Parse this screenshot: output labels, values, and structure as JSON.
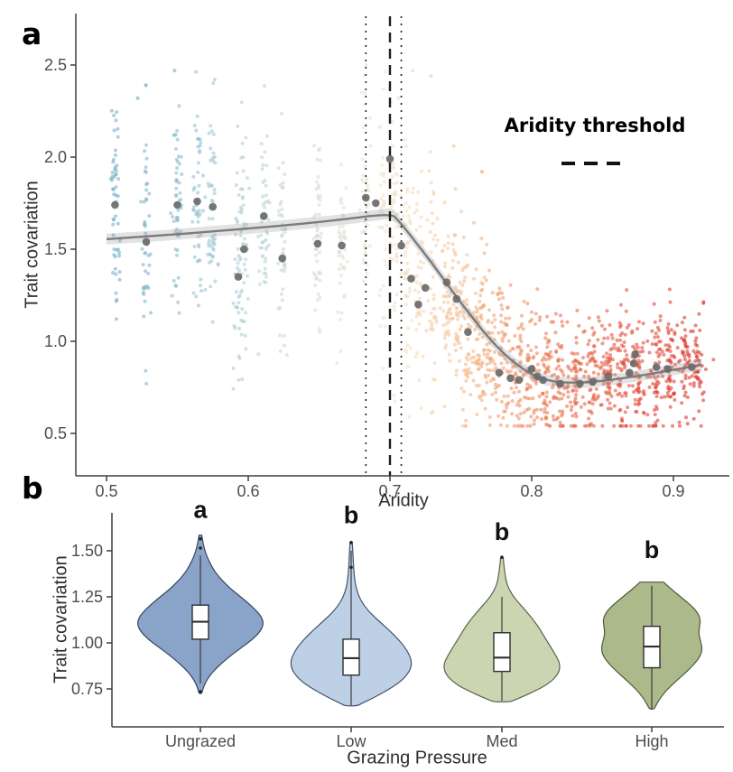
{
  "chart_data": [
    {
      "type": "scatter",
      "panel_label": "a",
      "xlabel": "Aridity",
      "ylabel": "Trait covariation",
      "x_ticks": [
        "0.5",
        "0.6",
        "0.7",
        "0.8",
        "0.9"
      ],
      "y_ticks": [
        "2.5",
        "2.0",
        "1.5",
        "1.0",
        "0.5"
      ],
      "xlim": [
        0.478,
        0.94
      ],
      "ylim": [
        0.28,
        2.55
      ],
      "grid": false,
      "legend": {
        "label": "Aridity threshold",
        "symbol": "dashed-line",
        "position": "upper-right"
      },
      "threshold": {
        "value": 0.7,
        "ci": [
          0.683,
          0.708
        ]
      },
      "style": {
        "trend_color": "#7b7b7b",
        "band_color": "#9e9e9e",
        "mean_point_color": "#6a6a6a",
        "threshold_line_color": "#1f1f1f",
        "axis_color": "#3f3f3f",
        "tick_label_color": "#4d4d4d"
      },
      "trend_line": [
        [
          0.5,
          1.555
        ],
        [
          0.54,
          1.575
        ],
        [
          0.58,
          1.6
        ],
        [
          0.62,
          1.625
        ],
        [
          0.66,
          1.655
        ],
        [
          0.701,
          1.695
        ],
        [
          0.706,
          1.655
        ],
        [
          0.712,
          1.6
        ],
        [
          0.72,
          1.52
        ],
        [
          0.73,
          1.42
        ],
        [
          0.74,
          1.315
        ],
        [
          0.75,
          1.21
        ],
        [
          0.76,
          1.11
        ],
        [
          0.77,
          1.015
        ],
        [
          0.78,
          0.935
        ],
        [
          0.79,
          0.87
        ],
        [
          0.8,
          0.82
        ],
        [
          0.81,
          0.79
        ],
        [
          0.82,
          0.777
        ],
        [
          0.835,
          0.775
        ],
        [
          0.85,
          0.785
        ],
        [
          0.865,
          0.8
        ],
        [
          0.88,
          0.818
        ],
        [
          0.895,
          0.838
        ],
        [
          0.91,
          0.858
        ],
        [
          0.92,
          0.872
        ]
      ],
      "site_means": [
        [
          0.506,
          1.74
        ],
        [
          0.528,
          1.54
        ],
        [
          0.55,
          1.74
        ],
        [
          0.564,
          1.76
        ],
        [
          0.575,
          1.73
        ],
        [
          0.593,
          1.35
        ],
        [
          0.597,
          1.5
        ],
        [
          0.611,
          1.68
        ],
        [
          0.624,
          1.45
        ],
        [
          0.649,
          1.53
        ],
        [
          0.666,
          1.52
        ],
        [
          0.683,
          1.78
        ],
        [
          0.69,
          1.75
        ],
        [
          0.7,
          1.99
        ],
        [
          0.708,
          1.52
        ],
        [
          0.715,
          1.34
        ],
        [
          0.72,
          1.2
        ],
        [
          0.725,
          1.29
        ],
        [
          0.74,
          1.32
        ],
        [
          0.747,
          1.23
        ],
        [
          0.755,
          1.05
        ],
        [
          0.777,
          0.83
        ],
        [
          0.785,
          0.8
        ],
        [
          0.791,
          0.79
        ],
        [
          0.8,
          0.85
        ],
        [
          0.804,
          0.81
        ],
        [
          0.808,
          0.79
        ],
        [
          0.82,
          0.77
        ],
        [
          0.834,
          0.77
        ],
        [
          0.843,
          0.78
        ],
        [
          0.854,
          0.81
        ],
        [
          0.869,
          0.83
        ],
        [
          0.872,
          0.88
        ],
        [
          0.873,
          0.93
        ],
        [
          0.888,
          0.86
        ],
        [
          0.896,
          0.85
        ],
        [
          0.913,
          0.86
        ]
      ],
      "strips": [
        [
          0.506,
          55,
          1.75,
          0.3,
          "#74b1c7"
        ],
        [
          0.528,
          45,
          1.58,
          0.3,
          "#7fb6cb"
        ],
        [
          0.55,
          55,
          1.75,
          0.3,
          "#8bbccf"
        ],
        [
          0.564,
          50,
          1.77,
          0.28,
          "#95c1d2"
        ],
        [
          0.575,
          50,
          1.74,
          0.3,
          "#9fc6d4"
        ],
        [
          0.593,
          40,
          1.42,
          0.3,
          "#abcbd5"
        ],
        [
          0.597,
          45,
          1.55,
          0.28,
          "#b2ced5"
        ],
        [
          0.611,
          50,
          1.64,
          0.28,
          "#bbd3d5"
        ],
        [
          0.624,
          45,
          1.48,
          0.28,
          "#c5d7d5"
        ],
        [
          0.649,
          50,
          1.52,
          0.27,
          "#d2ddd6"
        ],
        [
          0.666,
          45,
          1.52,
          0.27,
          "#dee1d5"
        ],
        [
          0.683,
          50,
          1.7,
          0.3,
          "#e9e3d2"
        ],
        [
          0.695,
          40,
          1.65,
          0.32,
          "#efe3cd"
        ],
        [
          0.703,
          45,
          1.55,
          0.33,
          "#f3e1c8"
        ],
        [
          0.712,
          45,
          1.4,
          0.3,
          "#f5ddc1"
        ],
        [
          0.72,
          45,
          1.28,
          0.28,
          "#f6d8b8"
        ],
        [
          0.73,
          45,
          1.3,
          0.27,
          "#f6d1ac"
        ],
        [
          0.74,
          50,
          1.25,
          0.26,
          "#f6caa1"
        ],
        [
          0.748,
          50,
          1.18,
          0.24,
          "#f5c296"
        ],
        [
          0.755,
          55,
          1.05,
          0.22,
          "#f4b98b"
        ],
        [
          0.763,
          55,
          1.0,
          0.22,
          "#f3b081"
        ],
        [
          0.771,
          55,
          0.95,
          0.2,
          "#f1a777"
        ],
        [
          0.78,
          60,
          0.88,
          0.2,
          "#f09d6e"
        ],
        [
          0.79,
          60,
          0.85,
          0.19,
          "#ee9265"
        ],
        [
          0.8,
          60,
          0.84,
          0.18,
          "#ec875d"
        ],
        [
          0.81,
          60,
          0.8,
          0.18,
          "#ea7c55"
        ],
        [
          0.82,
          60,
          0.8,
          0.18,
          "#e8724e"
        ],
        [
          0.831,
          62,
          0.8,
          0.17,
          "#e66848"
        ],
        [
          0.842,
          62,
          0.8,
          0.17,
          "#e45f43"
        ],
        [
          0.853,
          62,
          0.82,
          0.17,
          "#e2573f"
        ],
        [
          0.864,
          65,
          0.82,
          0.17,
          "#e14f3b"
        ],
        [
          0.875,
          65,
          0.84,
          0.17,
          "#df4938"
        ],
        [
          0.887,
          62,
          0.85,
          0.16,
          "#de4435"
        ],
        [
          0.898,
          58,
          0.85,
          0.16,
          "#dc3f33"
        ],
        [
          0.908,
          52,
          0.87,
          0.15,
          "#db3b31"
        ],
        [
          0.917,
          45,
          0.88,
          0.14,
          "#da3830"
        ]
      ],
      "extra_points": [
        [
          0.716,
          2.47,
          "#f5ddc1"
        ],
        [
          0.729,
          2.44,
          "#f6d2ae"
        ],
        [
          0.706,
          2.32,
          "#f4dfc4"
        ],
        [
          0.745,
          2.06,
          "#f6c89e"
        ],
        [
          0.765,
          1.92,
          "#f3ae7f"
        ],
        [
          0.548,
          2.47,
          "#8bbccf"
        ],
        [
          0.522,
          2.32,
          "#7fb6cb"
        ]
      ]
    },
    {
      "type": "violin",
      "panel_label": "b",
      "xlabel": "Grazing Pressure",
      "ylabel": "Trait covariation",
      "y_ticks": [
        "1.50",
        "1.25",
        "1.00",
        "0.75"
      ],
      "ylim": [
        0.55,
        1.72
      ],
      "grid": false,
      "style": {
        "axis_color": "#3f3f3f",
        "tick_label_color": "#4d4d4d",
        "box_fill": "#ffffff",
        "box_stroke": "#2f2f2f"
      },
      "categories": [
        {
          "label": "Ungrazed",
          "letter": "a",
          "letter_value": 1.68,
          "fill": "#8aa3c8",
          "stroke": "#39465a",
          "box": {
            "q1": 1.02,
            "median": 1.115,
            "q3": 1.205,
            "whisker_low": 0.78,
            "whisker_high": 1.475
          },
          "outliers": [
            1.565,
            1.515,
            0.735
          ],
          "profile": [
            [
              1.585,
              1.5
            ],
            [
              1.54,
              3
            ],
            [
              1.5,
              5
            ],
            [
              1.46,
              8
            ],
            [
              1.42,
              12
            ],
            [
              1.38,
              17
            ],
            [
              1.34,
              24
            ],
            [
              1.3,
              32
            ],
            [
              1.26,
              42
            ],
            [
              1.22,
              52
            ],
            [
              1.18,
              61
            ],
            [
              1.14,
              68
            ],
            [
              1.1,
              70
            ],
            [
              1.06,
              66
            ],
            [
              1.02,
              58
            ],
            [
              0.98,
              47
            ],
            [
              0.94,
              36
            ],
            [
              0.9,
              26
            ],
            [
              0.86,
              17
            ],
            [
              0.82,
              10
            ],
            [
              0.78,
              5
            ],
            [
              0.745,
              2.5
            ],
            [
              0.725,
              1.5
            ]
          ]
        },
        {
          "label": "Low",
          "letter": "b",
          "letter_value": 1.65,
          "fill": "#bed0e6",
          "stroke": "#44536a",
          "box": {
            "q1": 0.825,
            "median": 0.917,
            "q3": 1.02,
            "whisker_low": 0.66,
            "whisker_high": 1.5
          },
          "outliers": [
            1.545,
            1.41
          ],
          "profile": [
            [
              1.545,
              1.2
            ],
            [
              1.5,
              1.8
            ],
            [
              1.46,
              2.2
            ],
            [
              1.42,
              2.6
            ],
            [
              1.38,
              3.2
            ],
            [
              1.34,
              4
            ],
            [
              1.3,
              5.5
            ],
            [
              1.26,
              8
            ],
            [
              1.22,
              12
            ],
            [
              1.18,
              18
            ],
            [
              1.14,
              26
            ],
            [
              1.1,
              35
            ],
            [
              1.06,
              44
            ],
            [
              1.02,
              52
            ],
            [
              0.98,
              59
            ],
            [
              0.94,
              64
            ],
            [
              0.9,
              67
            ],
            [
              0.86,
              66
            ],
            [
              0.82,
              61
            ],
            [
              0.78,
              52
            ],
            [
              0.74,
              39
            ],
            [
              0.7,
              24
            ],
            [
              0.672,
              12
            ],
            [
              0.658,
              7
            ]
          ]
        },
        {
          "label": "Med",
          "letter": "b",
          "letter_value": 1.56,
          "fill": "#ccd5b2",
          "stroke": "#59624b",
          "box": {
            "q1": 0.845,
            "median": 0.92,
            "q3": 1.055,
            "whisker_low": 0.685,
            "whisker_high": 1.25
          },
          "outliers": [
            1.465
          ],
          "profile": [
            [
              1.46,
              1.5
            ],
            [
              1.43,
              2
            ],
            [
              1.4,
              2.8
            ],
            [
              1.37,
              3.6
            ],
            [
              1.33,
              5
            ],
            [
              1.29,
              8
            ],
            [
              1.25,
              13
            ],
            [
              1.21,
              20
            ],
            [
              1.17,
              27
            ],
            [
              1.13,
              34
            ],
            [
              1.09,
              40
            ],
            [
              1.05,
              45
            ],
            [
              1.01,
              50
            ],
            [
              0.97,
              55
            ],
            [
              0.93,
              60
            ],
            [
              0.89,
              64
            ],
            [
              0.85,
              64
            ],
            [
              0.81,
              59
            ],
            [
              0.77,
              49
            ],
            [
              0.74,
              37
            ],
            [
              0.71,
              24
            ],
            [
              0.69,
              14
            ],
            [
              0.68,
              9
            ]
          ]
        },
        {
          "label": "High",
          "letter": "b",
          "letter_value": 1.46,
          "fill": "#abb98b",
          "stroke": "#4f5a3e",
          "box": {
            "q1": 0.865,
            "median": 0.98,
            "q3": 1.09,
            "whisker_low": 0.64,
            "whisker_high": 1.31
          },
          "outliers": [],
          "profile": [
            [
              1.33,
              13
            ],
            [
              1.29,
              22
            ],
            [
              1.25,
              32
            ],
            [
              1.21,
              42
            ],
            [
              1.17,
              50
            ],
            [
              1.13,
              54
            ],
            [
              1.09,
              53
            ],
            [
              1.05,
              52
            ],
            [
              1.01,
              54
            ],
            [
              0.97,
              56
            ],
            [
              0.93,
              54
            ],
            [
              0.89,
              48
            ],
            [
              0.85,
              40
            ],
            [
              0.81,
              31
            ],
            [
              0.77,
              22
            ],
            [
              0.73,
              14
            ],
            [
              0.69,
              8
            ],
            [
              0.655,
              4
            ],
            [
              0.64,
              2.5
            ]
          ]
        }
      ]
    }
  ]
}
